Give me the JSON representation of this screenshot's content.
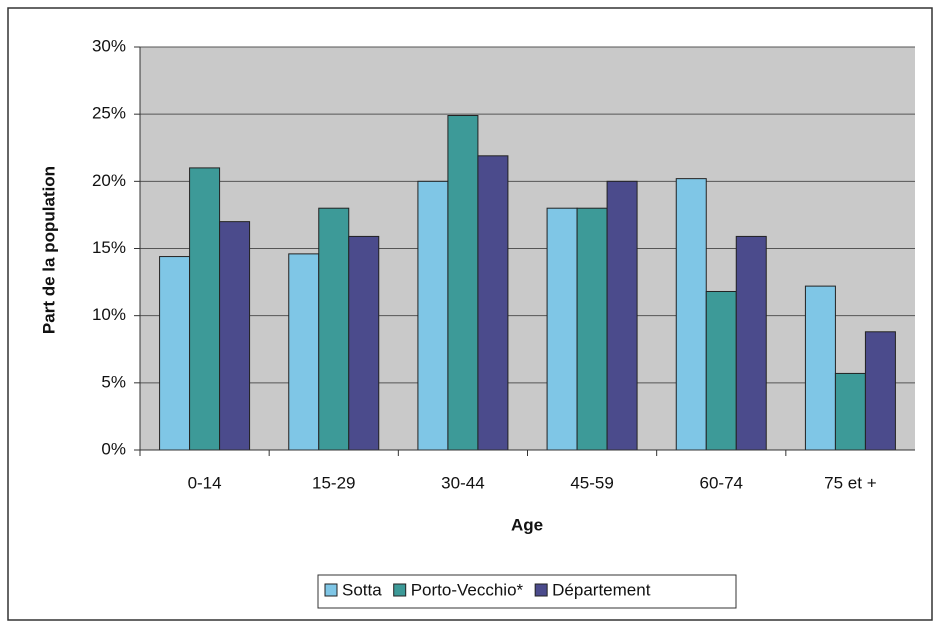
{
  "chart_data": {
    "type": "bar",
    "x_label": "Age",
    "y_label": "Part de la population",
    "categories": [
      "0-14",
      "15-29",
      "30-44",
      "45-59",
      "60-74",
      "75 et +"
    ],
    "series": [
      {
        "name": "Sotta",
        "color": "#7fc6e6",
        "values": [
          14.4,
          14.6,
          20.0,
          18.0,
          20.2,
          12.2
        ]
      },
      {
        "name": "Porto-Vecchio*",
        "color": "#3d9a98",
        "values": [
          21.0,
          18.0,
          24.9,
          18.0,
          11.8,
          5.7
        ]
      },
      {
        "name": "Département",
        "color": "#4b4b8c",
        "values": [
          17.0,
          15.9,
          21.9,
          20.0,
          15.9,
          8.8
        ]
      }
    ],
    "ylim": [
      0,
      30
    ],
    "yticks": [
      {
        "value": 0,
        "label": "0%"
      },
      {
        "value": 5,
        "label": "5%"
      },
      {
        "value": 10,
        "label": "10%"
      },
      {
        "value": 15,
        "label": "15%"
      },
      {
        "value": 20,
        "label": "20%"
      },
      {
        "value": 25,
        "label": "25%"
      },
      {
        "value": 30,
        "label": "30%"
      }
    ],
    "grid": true
  }
}
